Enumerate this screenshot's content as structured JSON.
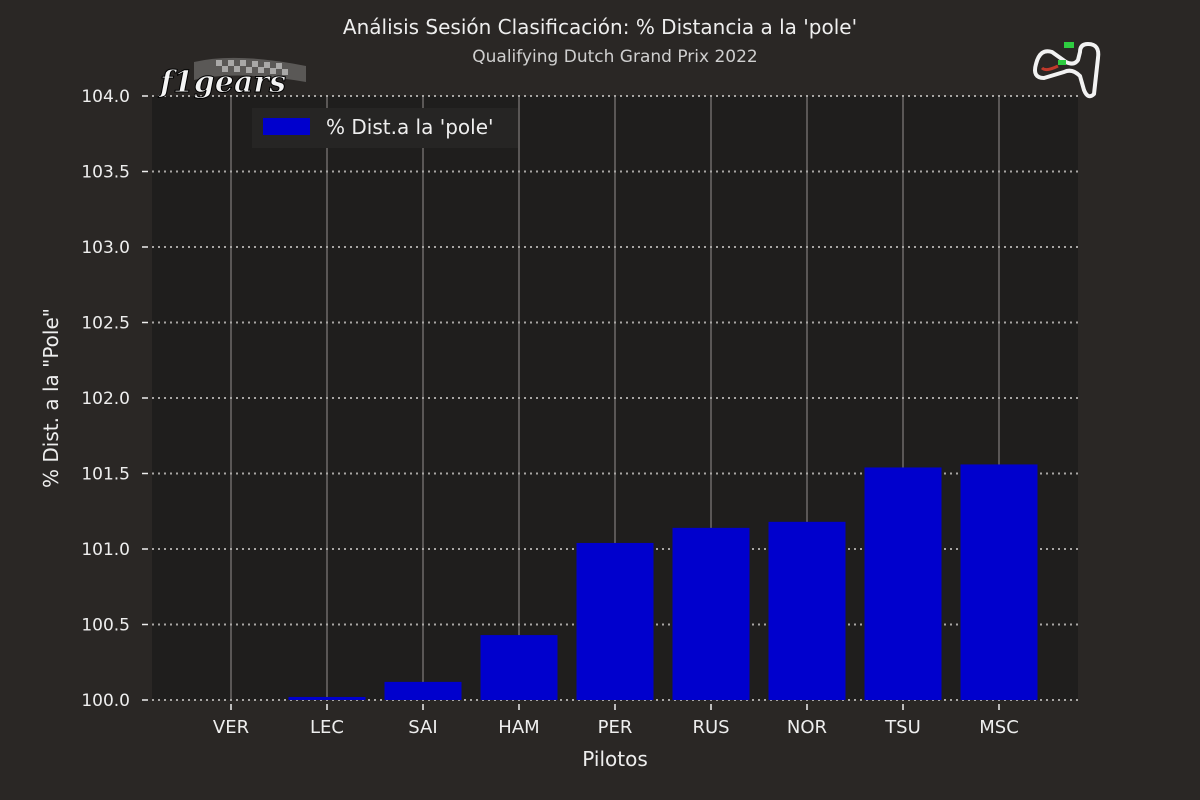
{
  "header": {
    "title": "Análisis Sesión Clasificación: % Distancia a la 'pole'",
    "subtitle": "Qualifying Dutch Grand Prix 2022"
  },
  "logo_text": "f1gears",
  "chart_data": {
    "type": "bar",
    "title": "Análisis Sesión Clasificación: % Distancia a la 'pole'",
    "subtitle": "Qualifying Dutch Grand Prix 2022",
    "xlabel": "Pilotos",
    "ylabel": "% Dist. a la \"Pole\"",
    "categories": [
      "VER",
      "LEC",
      "SAI",
      "HAM",
      "PER",
      "RUS",
      "NOR",
      "TSU",
      "MSC"
    ],
    "series": [
      {
        "name": "% Dist.a la 'pole'",
        "color": "#0000cd",
        "values": [
          100.0,
          100.02,
          100.12,
          100.43,
          101.04,
          101.14,
          101.18,
          101.54,
          101.56
        ]
      }
    ],
    "ylim": [
      100.0,
      104.0
    ],
    "yticks": [
      "100.0",
      "100.5",
      "101.0",
      "101.5",
      "102.0",
      "102.5",
      "103.0",
      "103.5",
      "104.0"
    ],
    "grid": "horizontal dotted, vertical solid",
    "legend_position": "top-left",
    "colors": {
      "figure_background": "#2a2725",
      "plot_background": "#1f1e1d",
      "bar": "#0000cd",
      "text": "#eeeeee"
    }
  }
}
